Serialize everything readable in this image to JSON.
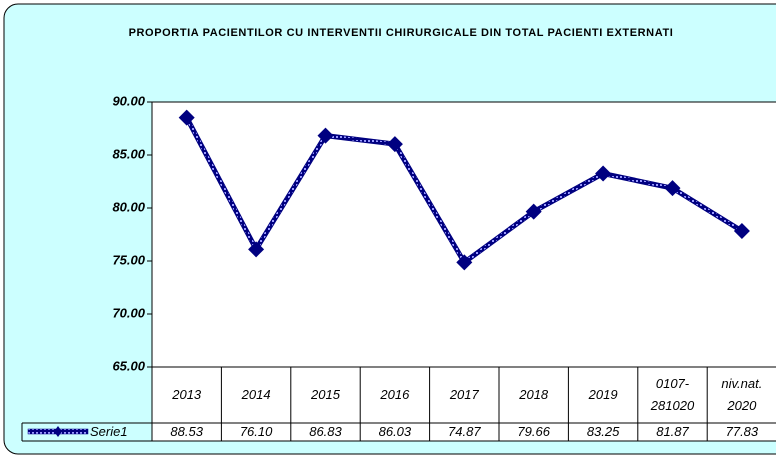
{
  "chart_data": {
    "type": "line",
    "title": "PROPORTIA PACIENTILOR CU INTERVENTII CHIRURGICALE DIN TOTAL PACIENTI EXTERNATI",
    "categories": [
      "2013",
      "2014",
      "2015",
      "2016",
      "2017",
      "2018",
      "2019",
      "0107-281020",
      "niv.nat. 2020"
    ],
    "series": [
      {
        "name": "Serie1",
        "color": "#000080",
        "values": [
          88.53,
          76.1,
          86.83,
          86.03,
          74.87,
          79.66,
          83.25,
          81.87,
          77.83
        ],
        "value_labels": [
          "88.53",
          "76.10",
          "86.83",
          "86.03",
          "74.87",
          "79.66",
          "83.25",
          "81.87",
          "77.83"
        ]
      }
    ],
    "ylim": [
      65,
      90
    ],
    "yticks": [
      {
        "value": 65,
        "label": "65.00"
      },
      {
        "value": 70,
        "label": "70.00"
      },
      {
        "value": 75,
        "label": "75.00"
      },
      {
        "value": 80,
        "label": "80.00"
      },
      {
        "value": 85,
        "label": "85.00"
      },
      {
        "value": 90,
        "label": "90.00"
      }
    ],
    "grid": false,
    "data_table": true
  }
}
